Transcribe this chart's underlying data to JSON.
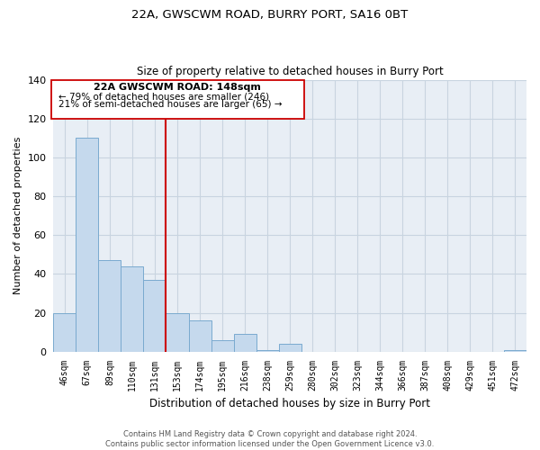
{
  "title": "22A, GWSCWM ROAD, BURRY PORT, SA16 0BT",
  "subtitle": "Size of property relative to detached houses in Burry Port",
  "xlabel": "Distribution of detached houses by size in Burry Port",
  "ylabel": "Number of detached properties",
  "bar_color": "#c5d9ed",
  "bar_edge_color": "#7aaacf",
  "bin_labels": [
    "46sqm",
    "67sqm",
    "89sqm",
    "110sqm",
    "131sqm",
    "153sqm",
    "174sqm",
    "195sqm",
    "216sqm",
    "238sqm",
    "259sqm",
    "280sqm",
    "302sqm",
    "323sqm",
    "344sqm",
    "366sqm",
    "387sqm",
    "408sqm",
    "429sqm",
    "451sqm",
    "472sqm"
  ],
  "bar_heights": [
    20,
    110,
    47,
    44,
    37,
    20,
    16,
    6,
    9,
    1,
    4,
    0,
    0,
    0,
    0,
    0,
    0,
    0,
    0,
    0,
    1
  ],
  "ylim": [
    0,
    140
  ],
  "yticks": [
    0,
    20,
    40,
    60,
    80,
    100,
    120,
    140
  ],
  "property_label": "22A GWSCWM ROAD: 148sqm",
  "annotation_line1": "← 79% of detached houses are smaller (246)",
  "annotation_line2": "21% of semi-detached houses are larger (65) →",
  "vline_color": "#cc0000",
  "background_color": "#e8eef5",
  "grid_color": "#c8d4e0",
  "footnote1": "Contains HM Land Registry data © Crown copyright and database right 2024.",
  "footnote2": "Contains public sector information licensed under the Open Government Licence v3.0."
}
